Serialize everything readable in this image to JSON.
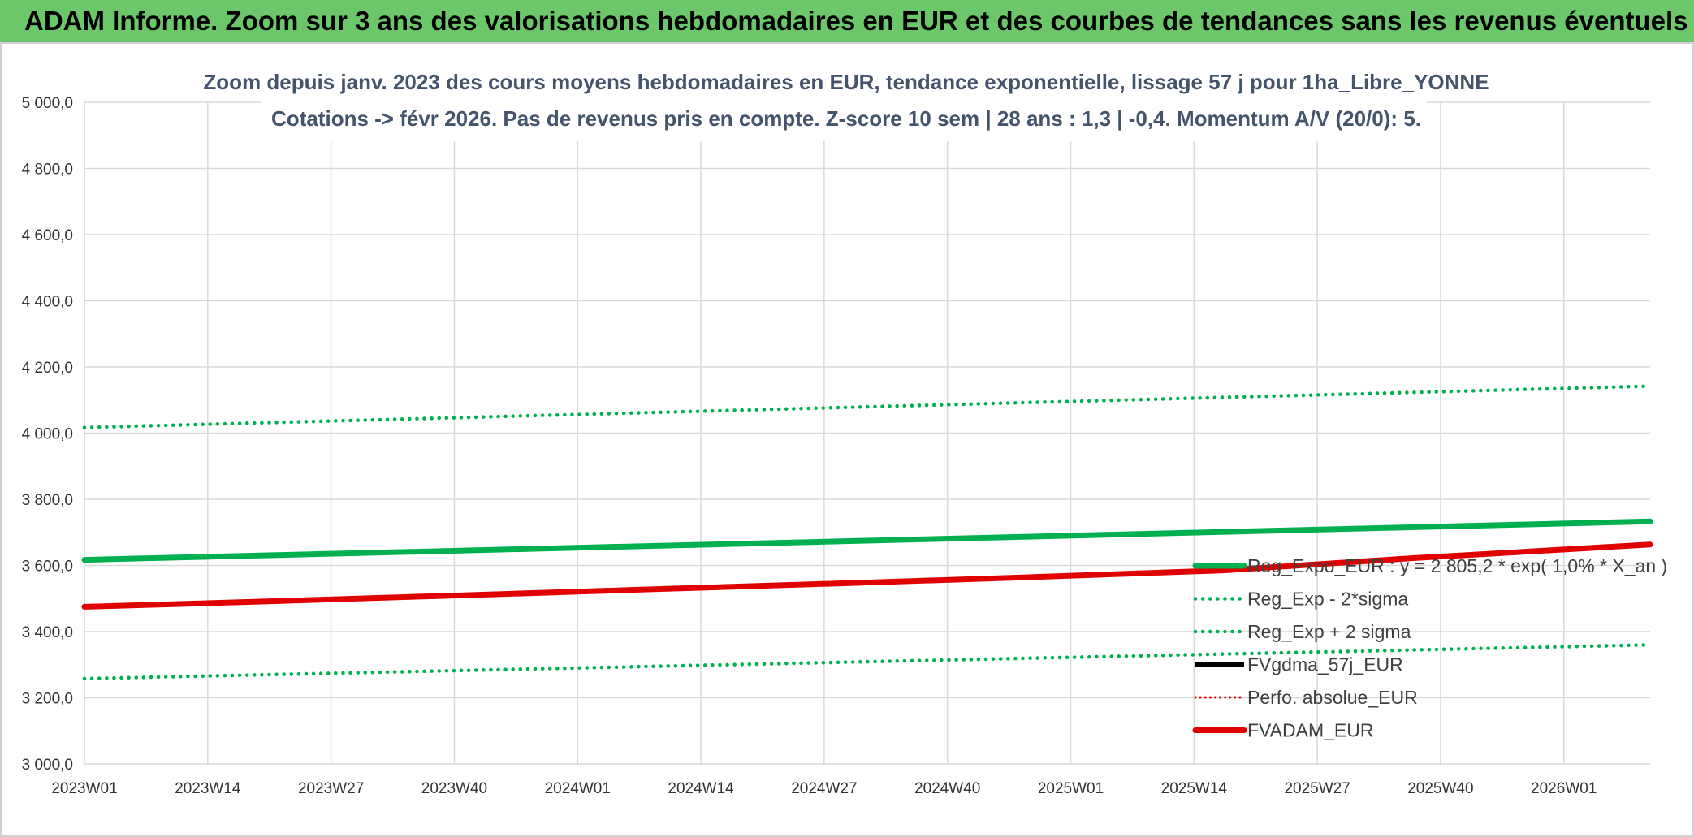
{
  "header": {
    "title": "ADAM Informe. Zoom sur 3 ans des valorisations hebdomadaires en EUR et des courbes de tendances sans les revenus éventuels"
  },
  "chart_data": {
    "type": "line",
    "title": "Zoom depuis janv. 2023 des cours moyens hebdomadaires en EUR, tendance exponentielle, lissage 57 j pour 1ha_Libre_YONNE",
    "subtitle": "Cotations -> févr 2026. Pas de revenus pris en compte. Z-score 10 sem | 28 ans : 1,3 | -0,4. Momentum A/V (20/0): 5.",
    "xlabel": "",
    "ylabel": "",
    "x_ticks": [
      "2023W01",
      "2023W14",
      "2023W27",
      "2023W40",
      "2024W01",
      "2024W14",
      "2024W27",
      "2024W40",
      "2025W01",
      "2025W14",
      "2025W27",
      "2025W40",
      "2026W01"
    ],
    "x_range_weeks": [
      0,
      165
    ],
    "ylim": [
      3000,
      5000
    ],
    "y_ticks": [
      3000,
      3200,
      3400,
      3600,
      3800,
      4000,
      4200,
      4400,
      4600,
      4800,
      5000
    ],
    "y_tick_labels": [
      "3 000,0",
      "3 200,0",
      "3 400,0",
      "3 600,0",
      "3 800,0",
      "4 000,0",
      "4 200,0",
      "4 400,0",
      "4 600,0",
      "4 800,0",
      "5 000,0"
    ],
    "grid": true,
    "legend_position": "right",
    "series": [
      {
        "name": "Reg_Expo_EUR : y = 2 805,2 * exp( 1,0% *  X_an )",
        "color": "#00b050",
        "style": "solid-thick",
        "x": [
          0,
          165
        ],
        "values": [
          3617,
          3733
        ]
      },
      {
        "name": "Reg_Exp - 2*sigma",
        "color": "#00b050",
        "style": "dotted",
        "x": [
          0,
          165
        ],
        "values": [
          3258,
          3360
        ]
      },
      {
        "name": "Reg_Exp + 2 sigma",
        "color": "#00b050",
        "style": "dotted",
        "x": [
          0,
          165
        ],
        "values": [
          4017,
          4142
        ]
      },
      {
        "name": "FVgdma_57j_EUR",
        "color": "#000000",
        "style": "solid",
        "x": [],
        "values": []
      },
      {
        "name": "Perfo. absolue_EUR",
        "color": "#e00000",
        "style": "dotted-thin",
        "x": [],
        "values": []
      },
      {
        "name": "FVADAM_EUR",
        "color": "#e00000",
        "style": "solid-thick",
        "x": [
          0,
          20,
          40,
          60,
          80,
          100,
          120,
          140,
          165
        ],
        "values": [
          3475,
          3492,
          3510,
          3528,
          3546,
          3565,
          3585,
          3622,
          3663
        ]
      }
    ]
  }
}
